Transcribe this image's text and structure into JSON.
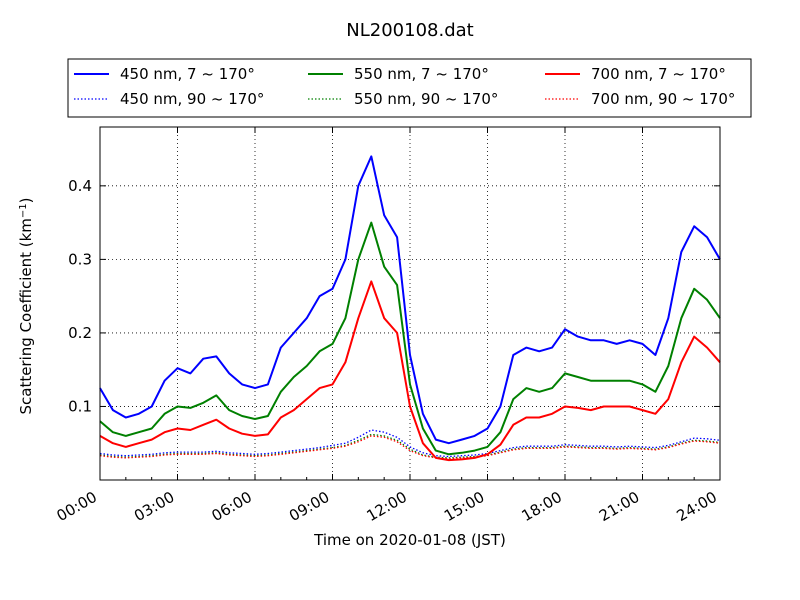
{
  "chart_data": {
    "type": "line",
    "title": "NL200108.dat",
    "xlabel": "Time on 2020-01-08 (JST)",
    "ylabel": "Scattering Coefficient (km",
    "ylabel_sup": "−1",
    "ylabel_end": ")",
    "x_unit": "hours",
    "xlim": [
      0,
      24
    ],
    "ylim": [
      0.0,
      0.48
    ],
    "x_ticks": [
      0,
      3,
      6,
      9,
      12,
      15,
      18,
      21,
      24
    ],
    "x_tick_labels": [
      "00:00",
      "03:00",
      "06:00",
      "09:00",
      "12:00",
      "15:00",
      "18:00",
      "21:00",
      "24:00"
    ],
    "y_ticks": [
      0.1,
      0.2,
      0.3,
      0.4
    ],
    "y_tick_labels": [
      "0.1",
      "0.2",
      "0.3",
      "0.4"
    ],
    "grid": true,
    "legend_position": "top",
    "x": [
      0,
      0.5,
      1,
      1.5,
      2,
      2.5,
      3,
      3.5,
      4,
      4.5,
      5,
      5.5,
      6,
      6.5,
      7,
      7.5,
      8,
      8.5,
      9,
      9.5,
      10,
      10.5,
      11,
      11.5,
      12,
      12.5,
      13,
      13.5,
      14,
      14.5,
      15,
      15.5,
      16,
      16.5,
      17,
      17.5,
      18,
      18.5,
      19,
      19.5,
      20,
      20.5,
      21,
      21.5,
      22,
      22.5,
      23,
      23.5,
      24
    ],
    "series": [
      {
        "name": "450 nm, 7 ~ 170°",
        "color": "#0000ff",
        "style": "solid",
        "values": [
          0.125,
          0.095,
          0.085,
          0.09,
          0.1,
          0.135,
          0.152,
          0.145,
          0.165,
          0.168,
          0.145,
          0.13,
          0.125,
          0.13,
          0.18,
          0.2,
          0.22,
          0.25,
          0.26,
          0.3,
          0.4,
          0.44,
          0.36,
          0.33,
          0.17,
          0.09,
          0.055,
          0.05,
          0.055,
          0.06,
          0.07,
          0.1,
          0.17,
          0.18,
          0.175,
          0.18,
          0.205,
          0.195,
          0.19,
          0.19,
          0.185,
          0.19,
          0.185,
          0.17,
          0.22,
          0.31,
          0.345,
          0.33,
          0.3
        ]
      },
      {
        "name": "550 nm, 7 ~ 170°",
        "color": "#008000",
        "style": "solid",
        "values": [
          0.08,
          0.065,
          0.06,
          0.065,
          0.07,
          0.09,
          0.1,
          0.098,
          0.105,
          0.115,
          0.095,
          0.087,
          0.083,
          0.087,
          0.12,
          0.14,
          0.155,
          0.175,
          0.185,
          0.22,
          0.3,
          0.35,
          0.29,
          0.265,
          0.13,
          0.07,
          0.04,
          0.035,
          0.037,
          0.04,
          0.045,
          0.065,
          0.11,
          0.125,
          0.12,
          0.125,
          0.145,
          0.14,
          0.135,
          0.135,
          0.135,
          0.135,
          0.13,
          0.12,
          0.155,
          0.22,
          0.26,
          0.245,
          0.22
        ]
      },
      {
        "name": "700 nm, 7 ~ 170°",
        "color": "#ff0000",
        "style": "solid",
        "values": [
          0.06,
          0.05,
          0.045,
          0.05,
          0.055,
          0.065,
          0.07,
          0.068,
          0.075,
          0.082,
          0.07,
          0.063,
          0.06,
          0.062,
          0.085,
          0.095,
          0.11,
          0.125,
          0.13,
          0.16,
          0.22,
          0.27,
          0.22,
          0.2,
          0.1,
          0.05,
          0.03,
          0.027,
          0.028,
          0.03,
          0.035,
          0.048,
          0.075,
          0.085,
          0.085,
          0.09,
          0.1,
          0.098,
          0.095,
          0.1,
          0.1,
          0.1,
          0.095,
          0.09,
          0.11,
          0.16,
          0.195,
          0.18,
          0.16
        ]
      },
      {
        "name": "450 nm, 90 ~ 170°",
        "color": "#0000ff",
        "style": "dotted",
        "values": [
          0.036,
          0.034,
          0.033,
          0.034,
          0.035,
          0.037,
          0.038,
          0.038,
          0.038,
          0.039,
          0.037,
          0.036,
          0.035,
          0.036,
          0.038,
          0.04,
          0.042,
          0.044,
          0.047,
          0.05,
          0.058,
          0.068,
          0.065,
          0.058,
          0.045,
          0.037,
          0.033,
          0.032,
          0.033,
          0.034,
          0.036,
          0.04,
          0.044,
          0.046,
          0.046,
          0.046,
          0.048,
          0.047,
          0.046,
          0.046,
          0.045,
          0.046,
          0.045,
          0.044,
          0.047,
          0.052,
          0.057,
          0.056,
          0.054
        ]
      },
      {
        "name": "550 nm, 90 ~ 170°",
        "color": "#008000",
        "style": "dotted",
        "values": [
          0.034,
          0.032,
          0.031,
          0.032,
          0.033,
          0.035,
          0.036,
          0.036,
          0.036,
          0.037,
          0.035,
          0.034,
          0.033,
          0.034,
          0.036,
          0.038,
          0.04,
          0.042,
          0.044,
          0.047,
          0.054,
          0.062,
          0.06,
          0.054,
          0.042,
          0.034,
          0.031,
          0.03,
          0.031,
          0.032,
          0.034,
          0.038,
          0.042,
          0.044,
          0.044,
          0.044,
          0.046,
          0.045,
          0.044,
          0.044,
          0.043,
          0.044,
          0.043,
          0.042,
          0.045,
          0.05,
          0.054,
          0.053,
          0.051
        ]
      },
      {
        "name": "700 nm, 90 ~ 170°",
        "color": "#ff0000",
        "style": "dotted",
        "values": [
          0.033,
          0.031,
          0.03,
          0.031,
          0.032,
          0.034,
          0.035,
          0.035,
          0.035,
          0.036,
          0.034,
          0.033,
          0.032,
          0.033,
          0.035,
          0.037,
          0.039,
          0.041,
          0.043,
          0.046,
          0.052,
          0.06,
          0.058,
          0.052,
          0.04,
          0.033,
          0.03,
          0.029,
          0.03,
          0.031,
          0.033,
          0.037,
          0.041,
          0.043,
          0.043,
          0.043,
          0.045,
          0.044,
          0.043,
          0.043,
          0.042,
          0.043,
          0.042,
          0.041,
          0.044,
          0.049,
          0.053,
          0.052,
          0.05
        ]
      }
    ]
  }
}
